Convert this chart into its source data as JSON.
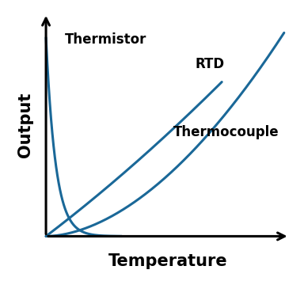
{
  "xlabel": "Temperature",
  "ylabel": "Output",
  "line_color": "#1A6898",
  "line_width": 2.2,
  "background_color": "#ffffff",
  "thermistor_label": "Thermistor",
  "rtd_label": "RTD",
  "thermocouple_label": "Thermocouple",
  "xlabel_fontsize": 15,
  "ylabel_fontsize": 15,
  "label_fontsize": 12,
  "axis_color": "#000000"
}
